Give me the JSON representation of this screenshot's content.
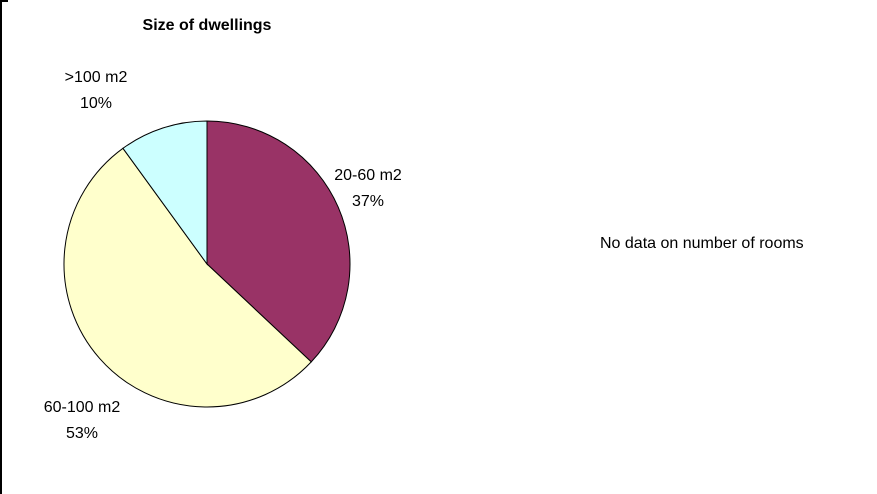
{
  "chart_data": {
    "type": "pie",
    "title": "Size of dwellings",
    "slices": [
      {
        "label": "20-60 m2",
        "value": 37,
        "value_label": "37%",
        "color": "#993366"
      },
      {
        "label": "60-100 m2",
        "value": 53,
        "value_label": "53%",
        "color": "#ffffcc"
      },
      {
        "label": ">100 m2",
        "value": 10,
        "value_label": "10%",
        "color": "#ccffff"
      }
    ],
    "start_angle_deg": 0,
    "direction": "clockwise",
    "legend": "none",
    "edge_color": "#000000"
  },
  "side_note": "No data on number of rooms"
}
